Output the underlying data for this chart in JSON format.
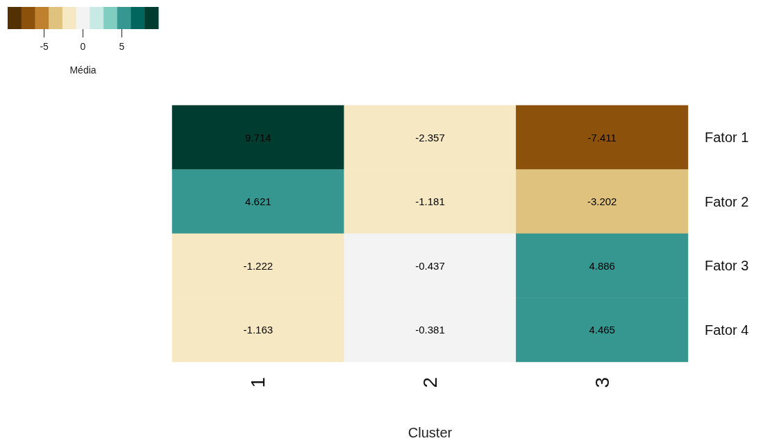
{
  "chart_data": {
    "type": "heatmap",
    "xlabel": "Cluster",
    "clabel": "Média",
    "categories": [
      "1",
      "2",
      "3"
    ],
    "y_categories": [
      "Fator 1",
      "Fator 2",
      "Fator 3",
      "Fator 4"
    ],
    "cells": [
      [
        9.714,
        -2.357,
        -7.411
      ],
      [
        4.621,
        -1.181,
        -3.202
      ],
      [
        -1.222,
        -0.437,
        4.886
      ],
      [
        -1.163,
        -0.381,
        4.465
      ]
    ],
    "data_labels": true,
    "clim": [
      -9.714,
      9.714
    ],
    "cticks": [
      -5,
      0,
      5
    ],
    "colors": [
      "#543005",
      "#8c510a",
      "#bf812d",
      "#dfc27d",
      "#f6e8c3",
      "#f3f3f3",
      "#c7eae5",
      "#80cdc1",
      "#35978f",
      "#01665e",
      "#003c30"
    ]
  }
}
